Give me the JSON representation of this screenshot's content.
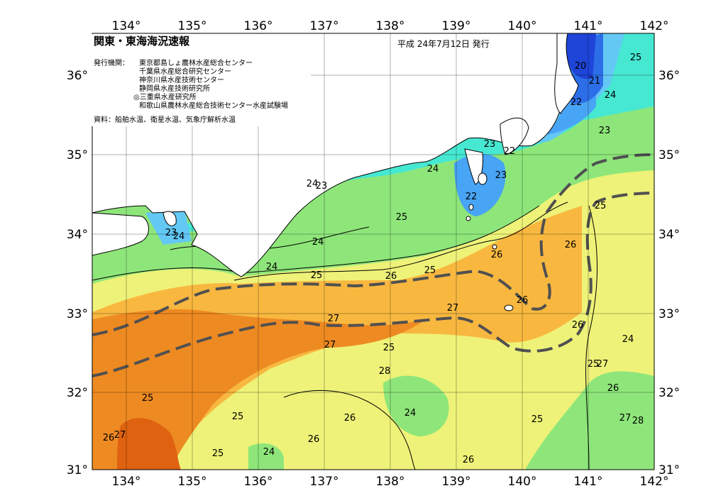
{
  "map": {
    "title": "関東・東海海況速報",
    "date": "平成 24年7月12日 発行",
    "publisher_label": "発行機関：",
    "publishers": [
      "東京都島しょ農林水産総合センター",
      "千葉県水産総合研究センター",
      "神奈川県水産技術センター",
      "静岡県水産技術研究所",
      "◎三重県水産研究所",
      "和歌山県農林水産総合技術センター水産試験場"
    ],
    "source": "資料：船舶水温、衛星水温、気象庁解析水温",
    "lon_ticks": [
      "134°",
      "135°",
      "136°",
      "137°",
      "138°",
      "139°",
      "140°",
      "141°",
      "142°"
    ],
    "lat_ticks": [
      "36°",
      "35°",
      "34°",
      "33°",
      "32°",
      "31°"
    ],
    "contour_labels": [
      "25",
      "20",
      "21",
      "24",
      "22",
      "23",
      "23",
      "22",
      "24",
      "23",
      "24",
      "23",
      "22",
      "25",
      "23",
      "24",
      "24",
      "26",
      "25",
      "25",
      "26",
      "26",
      "24",
      "25",
      "26",
      "27",
      "27",
      "26",
      "27",
      "25",
      "24",
      "28",
      "25",
      "27",
      "26",
      "25",
      "24",
      "25",
      "26",
      "27",
      "28",
      "25",
      "26",
      "27",
      "26"
    ],
    "colors": {
      "t20": "#1e44d8",
      "t21": "#2c6ee8",
      "t22": "#48a4f4",
      "t23": "#63c8f4",
      "t24": "#46e8d2",
      "t25": "#8ee67a",
      "t26": "#eef278",
      "t27": "#f8b840",
      "t28": "#ee8a22",
      "t29": "#de6210",
      "land": "#ffffff",
      "kuroshio_axis": "#505050"
    }
  }
}
